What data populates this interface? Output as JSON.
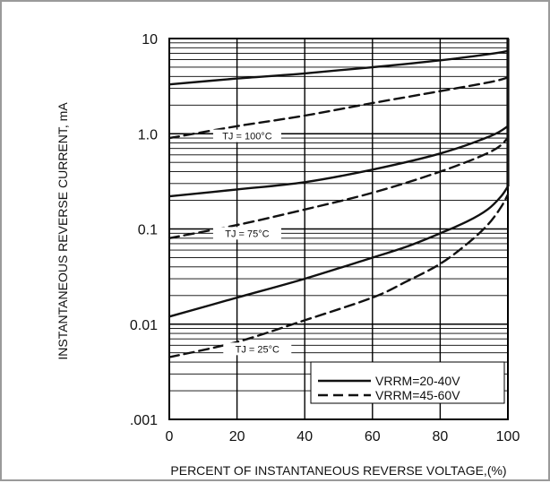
{
  "chart_data": {
    "type": "line",
    "title": "",
    "xlabel": "PERCENT OF INSTANTANEOUS REVERSE VOLTAGE,(%)",
    "ylabel": "INSTANTANEOUS REVERSE CURRENT, mA",
    "xlim": [
      0,
      100
    ],
    "ylim": [
      0.001,
      10
    ],
    "yscale": "log",
    "grid": true,
    "x_ticks": [
      "0",
      "20",
      "40",
      "60",
      "80",
      "100"
    ],
    "y_ticks": [
      ".001",
      "0.01",
      "0.1",
      "1.0",
      "10"
    ],
    "legend_position": "bottom-right",
    "legend": [
      {
        "label": "VRRM=20-40V",
        "style": "solid"
      },
      {
        "label": "VRRM=45-60V",
        "style": "dashed"
      }
    ],
    "annotations": [
      {
        "text": "TJ = 100°C",
        "x": 23,
        "y": 0.95
      },
      {
        "text": "TJ = 75°C",
        "x": 23,
        "y": 0.09
      },
      {
        "text": "TJ = 25°C",
        "x": 26,
        "y": 0.0055
      }
    ],
    "series": [
      {
        "style": "solid",
        "x": [
          0,
          20,
          40,
          60,
          80,
          95,
          100
        ],
        "y": [
          3.3,
          3.8,
          4.3,
          5.0,
          5.9,
          6.9,
          7.4
        ]
      },
      {
        "style": "dashed",
        "x": [
          0,
          20,
          40,
          60,
          80,
          95,
          100
        ],
        "y": [
          0.9,
          1.2,
          1.55,
          2.1,
          2.8,
          3.5,
          3.9
        ]
      },
      {
        "style": "solid",
        "x": [
          0,
          20,
          40,
          60,
          80,
          95,
          100
        ],
        "y": [
          0.22,
          0.26,
          0.31,
          0.42,
          0.62,
          0.95,
          1.2
        ]
      },
      {
        "style": "dashed",
        "x": [
          0,
          20,
          40,
          60,
          80,
          95,
          100
        ],
        "y": [
          0.08,
          0.11,
          0.16,
          0.24,
          0.4,
          0.65,
          0.9
        ]
      },
      {
        "style": "solid",
        "x": [
          0,
          20,
          40,
          60,
          70,
          80,
          88,
          94,
          98,
          100
        ],
        "y": [
          0.012,
          0.019,
          0.03,
          0.05,
          0.065,
          0.09,
          0.12,
          0.16,
          0.22,
          0.28
        ]
      },
      {
        "style": "dashed",
        "x": [
          0,
          20,
          40,
          60,
          70,
          80,
          88,
          94,
          98,
          100
        ],
        "y": [
          0.0045,
          0.0065,
          0.011,
          0.019,
          0.028,
          0.043,
          0.07,
          0.11,
          0.17,
          0.23
        ]
      }
    ]
  }
}
